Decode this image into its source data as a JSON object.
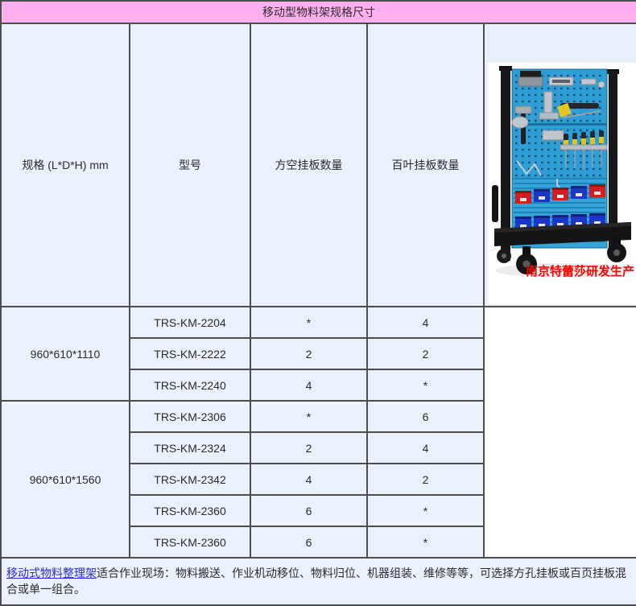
{
  "title": "移动型物料架规格尺寸",
  "table": {
    "headers": [
      "规格 (L*D*H) mm",
      "型号",
      "方空挂板数量",
      "百叶挂板数量"
    ],
    "groups": [
      {
        "spec": "960*610*1110",
        "rows": [
          {
            "model": "TRS-KM-2204",
            "square": "*",
            "louver": "4"
          },
          {
            "model": "TRS-KM-2222",
            "square": "2",
            "louver": "2"
          },
          {
            "model": "TRS-KM-2240",
            "square": "4",
            "louver": "*"
          }
        ]
      },
      {
        "spec": "960*610*1560",
        "rows": [
          {
            "model": "TRS-KM-2306",
            "square": "*",
            "louver": "6"
          },
          {
            "model": "TRS-KM-2324",
            "square": "2",
            "louver": "4"
          },
          {
            "model": "TRS-KM-2342",
            "square": "4",
            "louver": "2"
          },
          {
            "model": "TRS-KM-2360",
            "square": "6",
            "louver": "*"
          },
          {
            "model": "TRS-KM-2360",
            "square": "6",
            "louver": "*"
          }
        ]
      }
    ]
  },
  "product_image": {
    "caption": "南京特蕾莎研发生产"
  },
  "footer": {
    "link_text": "移动式物料整理架",
    "text": "适合作业现场：物料搬送、作业机动移位、物料归位、机器组装、维修等等，可选择方孔挂板或百页挂板混合或单一组合。"
  },
  "colors": {
    "title_bg": "#ffaef0",
    "cell_bg": "#eaf1fa",
    "border": "#4d4d4d",
    "link": "#2a2ad8",
    "caption": "#ff0000",
    "text": "#2b2b2b"
  }
}
